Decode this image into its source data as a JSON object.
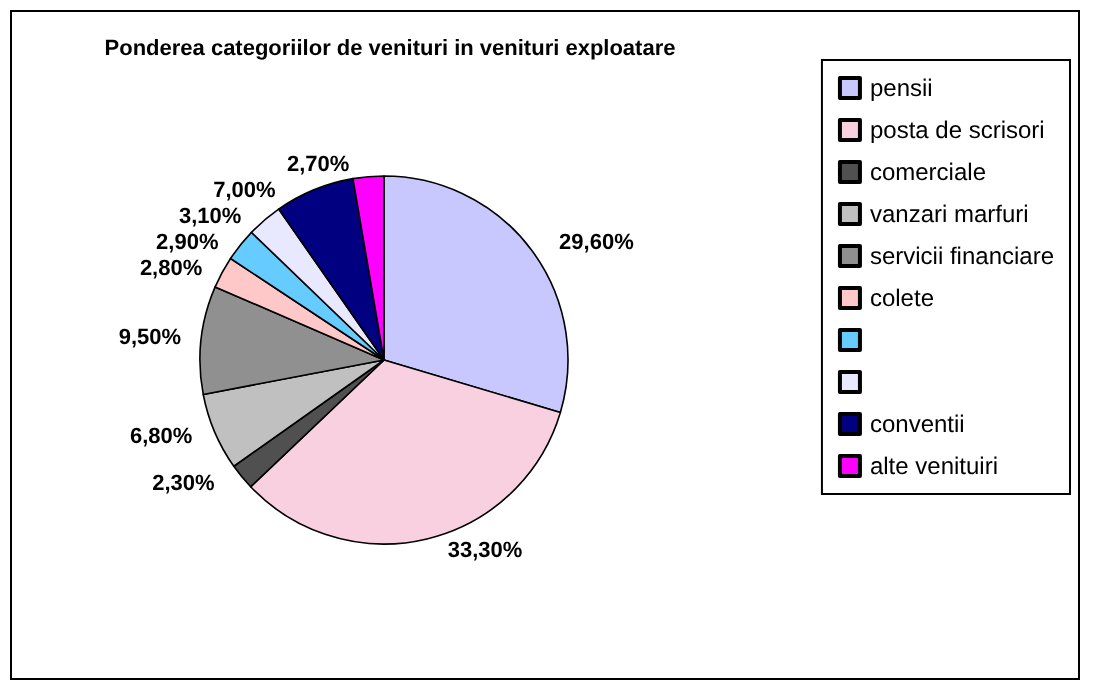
{
  "chart_data": {
    "type": "pie",
    "title": "Ponderea categoriilor de venituri in venituri exploatare",
    "categories": [
      "pensii",
      "posta de scrisori",
      "comerciale",
      "vanzari marfuri",
      "servicii financiare",
      "colete",
      null,
      null,
      "conventii",
      "alte venituiri"
    ],
    "values": [
      29.6,
      33.3,
      2.3,
      6.8,
      9.5,
      2.8,
      2.9,
      3.1,
      7.0,
      2.7
    ],
    "value_labels": [
      "29,60%",
      "33,30%",
      "2,30%",
      "6,80%",
      "9,50%",
      "2,80%",
      "2,90%",
      "3,10%",
      "7,00%",
      "2,70%"
    ],
    "colors": [
      "#c8c8ff",
      "#f8d0e0",
      "#505050",
      "#c0c0c0",
      "#909090",
      "#ffc8c8",
      "#66ccff",
      "#e8e8ff",
      "#000080",
      "#ff00ff"
    ],
    "legend": "right"
  }
}
